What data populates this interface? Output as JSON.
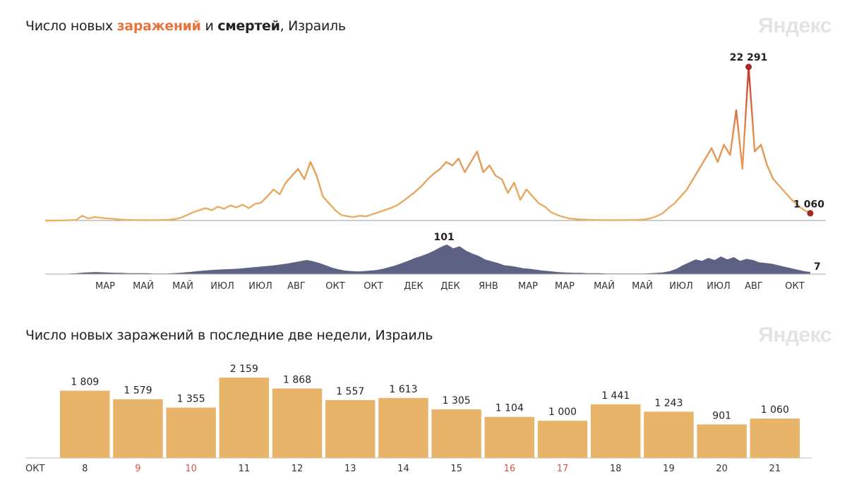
{
  "chart_data": [
    {
      "type": "line",
      "title_parts": [
        "Число новых ",
        "заражений",
        " и ",
        "смертей",
        ", Израиль"
      ],
      "watermark": "Яндекс",
      "x_tick_labels": [
        "МАР",
        "МАЙ",
        "МАЙ",
        "ИЮЛ",
        "ИЮЛ",
        "АВГ",
        "ОКТ",
        "ОКТ",
        "ДЕК",
        "ДЕК",
        "ЯНВ",
        "МАР",
        "МАР",
        "МАЙ",
        "МАЙ",
        "ИЮЛ",
        "ИЮЛ",
        "АВГ",
        "ОКТ"
      ],
      "series": [
        {
          "name": "заражений",
          "color": "#e8b265",
          "peak_color": "#c8372d",
          "ylim": [
            0,
            22291
          ],
          "values": [
            0,
            0,
            10,
            20,
            40,
            80,
            700,
            300,
            500,
            400,
            300,
            250,
            150,
            100,
            80,
            60,
            50,
            40,
            60,
            80,
            100,
            200,
            400,
            800,
            1200,
            1500,
            1800,
            1500,
            2000,
            1700,
            2200,
            1900,
            2300,
            1800,
            2400,
            2600,
            3500,
            4500,
            3800,
            5500,
            6500,
            7500,
            6000,
            8500,
            6500,
            3500,
            2500,
            1500,
            800,
            600,
            500,
            700,
            600,
            900,
            1200,
            1500,
            1800,
            2200,
            2800,
            3500,
            4200,
            5000,
            6000,
            6800,
            7500,
            8500,
            8000,
            9000,
            7000,
            8500,
            10000,
            7000,
            8000,
            6500,
            6000,
            4000,
            5500,
            3000,
            4500,
            3500,
            2500,
            2000,
            1200,
            800,
            500,
            300,
            200,
            150,
            100,
            80,
            60,
            50,
            40,
            50,
            60,
            80,
            100,
            150,
            300,
            600,
            1000,
            1800,
            2500,
            3500,
            4500,
            6000,
            7500,
            9000,
            10500,
            8500,
            11000,
            9500,
            16000,
            7500,
            22291,
            10000,
            11000,
            8000,
            6000,
            5000,
            4000,
            3000,
            2200,
            1500,
            1060
          ],
          "highlight": [
            {
              "label": "22 291",
              "value": 22291
            },
            {
              "label": "1 060",
              "value": 1060
            }
          ]
        },
        {
          "name": "смертей",
          "color": "#5d6285",
          "ylim": [
            0,
            101
          ],
          "values": [
            0,
            0,
            0,
            1,
            2,
            3,
            5,
            6,
            7,
            6,
            5,
            4,
            4,
            3,
            3,
            3,
            3,
            2,
            2,
            2,
            3,
            4,
            6,
            8,
            10,
            12,
            14,
            15,
            16,
            17,
            18,
            20,
            22,
            24,
            26,
            28,
            30,
            33,
            36,
            40,
            44,
            48,
            44,
            38,
            30,
            22,
            16,
            12,
            10,
            9,
            10,
            12,
            14,
            18,
            24,
            30,
            38,
            46,
            55,
            62,
            70,
            80,
            92,
            101,
            88,
            95,
            80,
            70,
            62,
            50,
            44,
            38,
            30,
            28,
            24,
            20,
            18,
            15,
            12,
            10,
            8,
            6,
            5,
            4,
            4,
            3,
            3,
            3,
            2,
            2,
            2,
            2,
            2,
            2,
            2,
            3,
            4,
            6,
            10,
            18,
            30,
            40,
            50,
            45,
            55,
            48,
            60,
            50,
            58,
            45,
            52,
            48,
            40,
            38,
            35,
            30,
            25,
            20,
            15,
            10,
            7
          ],
          "highlight": [
            {
              "label": "101",
              "value": 101
            },
            {
              "label": "7",
              "value": 7
            }
          ]
        }
      ]
    },
    {
      "type": "bar",
      "title": "Число новых заражений в последние две недели, Израиль",
      "watermark": "Яндекс",
      "month_label": "ОКТ",
      "bar_color": "#e8b46a",
      "weekend_color": "#d9534a",
      "categories": [
        "8",
        "9",
        "10",
        "11",
        "12",
        "13",
        "14",
        "15",
        "16",
        "17",
        "18",
        "19",
        "20",
        "21"
      ],
      "weekend": [
        false,
        true,
        true,
        false,
        false,
        false,
        false,
        false,
        true,
        true,
        false,
        false,
        false,
        false
      ],
      "values": [
        1809,
        1579,
        1355,
        2159,
        1868,
        1557,
        1613,
        1305,
        1104,
        1000,
        1441,
        1243,
        901,
        1060
      ],
      "value_labels": [
        "1 809",
        "1 579",
        "1 355",
        "2 159",
        "1 868",
        "1 557",
        "1 613",
        "1 305",
        "1 104",
        "1 000",
        "1 441",
        "1 243",
        "901",
        "1 060"
      ],
      "ylim": [
        0,
        2159
      ]
    }
  ]
}
